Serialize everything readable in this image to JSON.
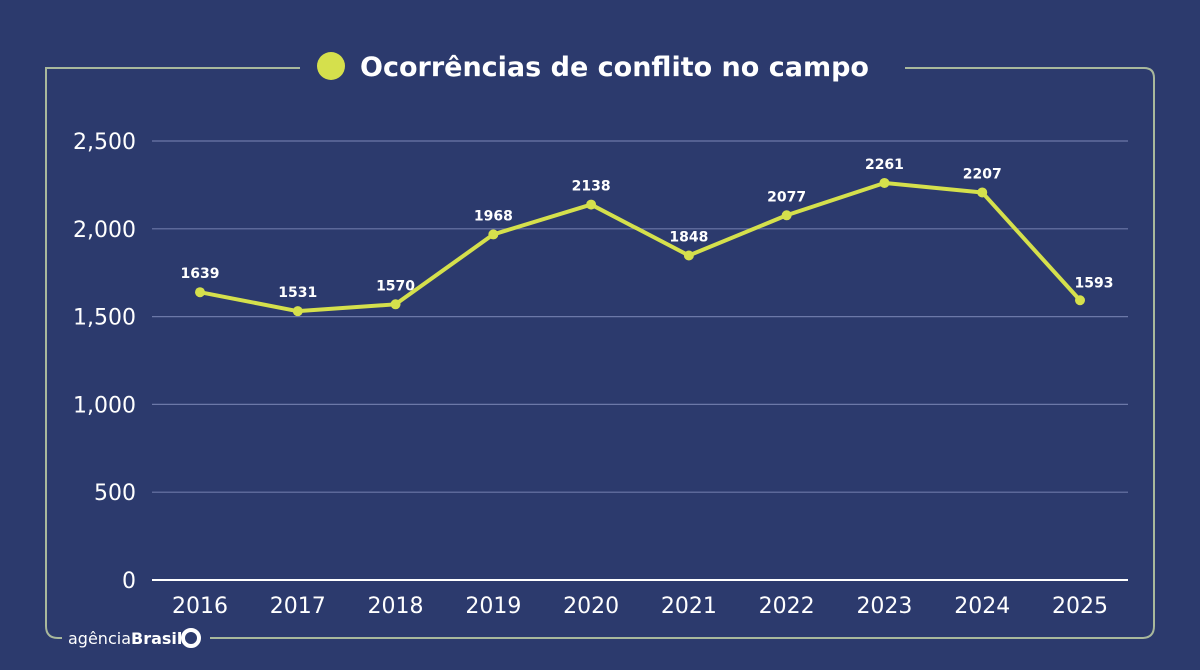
{
  "chart_data": {
    "type": "line",
    "title": "Ocorrências de conflito no campo",
    "xlabel": "",
    "ylabel": "",
    "categories": [
      "2016",
      "2017",
      "2018",
      "2019",
      "2020",
      "2021",
      "2022",
      "2023",
      "2024",
      "2025"
    ],
    "values": [
      1639,
      1531,
      1570,
      1968,
      2138,
      1848,
      2077,
      2261,
      2207,
      1593
    ],
    "ylim": [
      0,
      2500
    ],
    "yticks": [
      0,
      500,
      1000,
      1500,
      2000,
      2500
    ],
    "ytick_labels": [
      "0",
      "500",
      "1,000",
      "1,500",
      "2,000",
      "2,500"
    ],
    "grid": true,
    "legend": "none",
    "colors": {
      "background": "#2c3a6d",
      "line": "#d5e04c",
      "frame": "#a9b89c",
      "grid": "#6c78a8"
    }
  },
  "branding": {
    "logo_text_light": "agência",
    "logo_text_bold": "Brasil"
  }
}
